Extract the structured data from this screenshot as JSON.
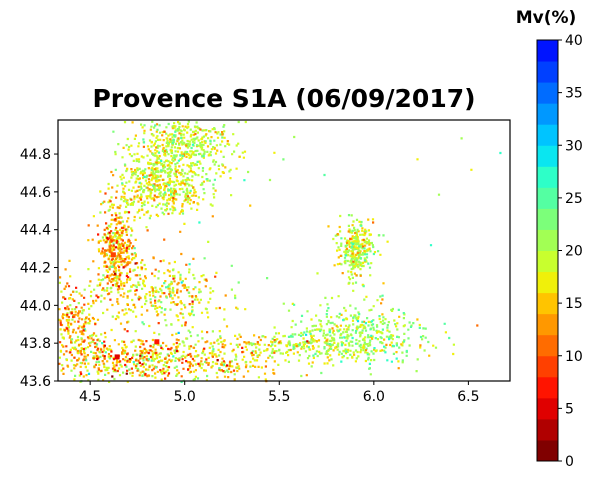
{
  "chart_data": {
    "type": "heatmap",
    "title": "Provence S1A (06/09/2017)",
    "xlabel": "",
    "ylabel": "",
    "xlim": [
      4.33,
      6.72
    ],
    "ylim": [
      43.6,
      44.98
    ],
    "xticks": [
      "4.5",
      "5.0",
      "5.5",
      "6.0",
      "6.5"
    ],
    "yticks": [
      "43.6",
      "43.8",
      "44.0",
      "44.2",
      "44.4",
      "44.6",
      "44.8"
    ],
    "grid": false,
    "colorbar": {
      "title": "Mv(%)",
      "range": [
        0,
        40
      ],
      "step": 2,
      "ticks": [
        "0",
        "5",
        "10",
        "15",
        "20",
        "25",
        "30",
        "35",
        "40"
      ],
      "colors": [
        "#800000",
        "#b00000",
        "#e00000",
        "#ff1400",
        "#ff4000",
        "#ff6c00",
        "#ff9800",
        "#ffc400",
        "#f0f00a",
        "#c8ff2e",
        "#a2ff54",
        "#7cff7a",
        "#54ffa2",
        "#2effc8",
        "#0ae6f0",
        "#00c4ff",
        "#0098ff",
        "#006cff",
        "#0040ff",
        "#0014ff"
      ]
    },
    "clusters": [
      {
        "lon": 4.98,
        "lat": 44.85,
        "lon_spread": 0.14,
        "lat_spread": 0.09,
        "density": 0.55,
        "mv_mean": 19,
        "mv_sd": 3
      },
      {
        "lon": 4.88,
        "lat": 44.63,
        "lon_spread": 0.12,
        "lat_spread": 0.08,
        "density": 0.5,
        "mv_mean": 18,
        "mv_sd": 3
      },
      {
        "lon": 4.63,
        "lat": 44.3,
        "lon_spread": 0.05,
        "lat_spread": 0.12,
        "density": 0.45,
        "mv_mean": 15,
        "mv_sd": 4
      },
      {
        "lon": 4.9,
        "lat": 44.05,
        "lon_spread": 0.15,
        "lat_spread": 0.1,
        "density": 0.35,
        "mv_mean": 17,
        "mv_sd": 4
      },
      {
        "lon": 4.7,
        "lat": 43.72,
        "lon_spread": 0.2,
        "lat_spread": 0.06,
        "density": 0.45,
        "mv_mean": 16,
        "mv_sd": 5
      },
      {
        "lon": 5.9,
        "lat": 43.85,
        "lon_spread": 0.18,
        "lat_spread": 0.08,
        "density": 0.45,
        "mv_mean": 21,
        "mv_sd": 3
      },
      {
        "lon": 5.9,
        "lat": 44.3,
        "lon_spread": 0.05,
        "lat_spread": 0.08,
        "density": 0.35,
        "mv_mean": 19,
        "mv_sd": 3
      },
      {
        "lon": 5.55,
        "lat": 43.8,
        "lon_spread": 0.3,
        "lat_spread": 0.04,
        "density": 0.25,
        "mv_mean": 18,
        "mv_sd": 3
      },
      {
        "lon": 4.4,
        "lat": 43.9,
        "lon_spread": 0.08,
        "lat_spread": 0.12,
        "density": 0.3,
        "mv_mean": 15,
        "mv_sd": 4
      },
      {
        "lon": 5.2,
        "lat": 43.7,
        "lon_spread": 0.2,
        "lat_spread": 0.05,
        "density": 0.22,
        "mv_mean": 16,
        "mv_sd": 4
      },
      {
        "lon": 5.6,
        "lat": 44.45,
        "lon_spread": 0.9,
        "lat_spread": 0.5,
        "density": 0.05,
        "mv_mean": 18,
        "mv_sd": 4
      }
    ],
    "highlights": [
      {
        "lon": 4.64,
        "lat": 43.73,
        "mv": 5
      },
      {
        "lon": 4.62,
        "lat": 44.27,
        "mv": 9
      },
      {
        "lon": 4.85,
        "lat": 43.81,
        "mv": 6
      }
    ]
  }
}
